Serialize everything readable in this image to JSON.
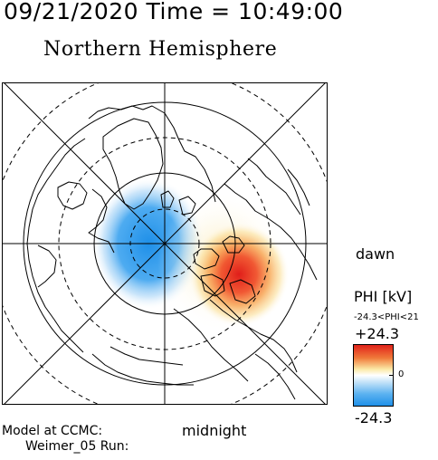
{
  "header": {
    "timestamp": "09/21/2020 Time = 10:49:00",
    "hemisphere": "Northern Hemisphere"
  },
  "labels": {
    "dawn": "dawn",
    "midnight": "midnight",
    "model_line1": "Model at CCMC:",
    "model_line2": "Weimer_05 Run:"
  },
  "colorbar": {
    "title": "PHI [kV]",
    "range_text": "-24.3<PHI<21",
    "max_label": "+24.3",
    "mid_label": "0",
    "min_label": "-24.3",
    "max_color": "#e0201a",
    "mid_color": "#ffffff",
    "min_color": "#1e8fe8"
  }
}
